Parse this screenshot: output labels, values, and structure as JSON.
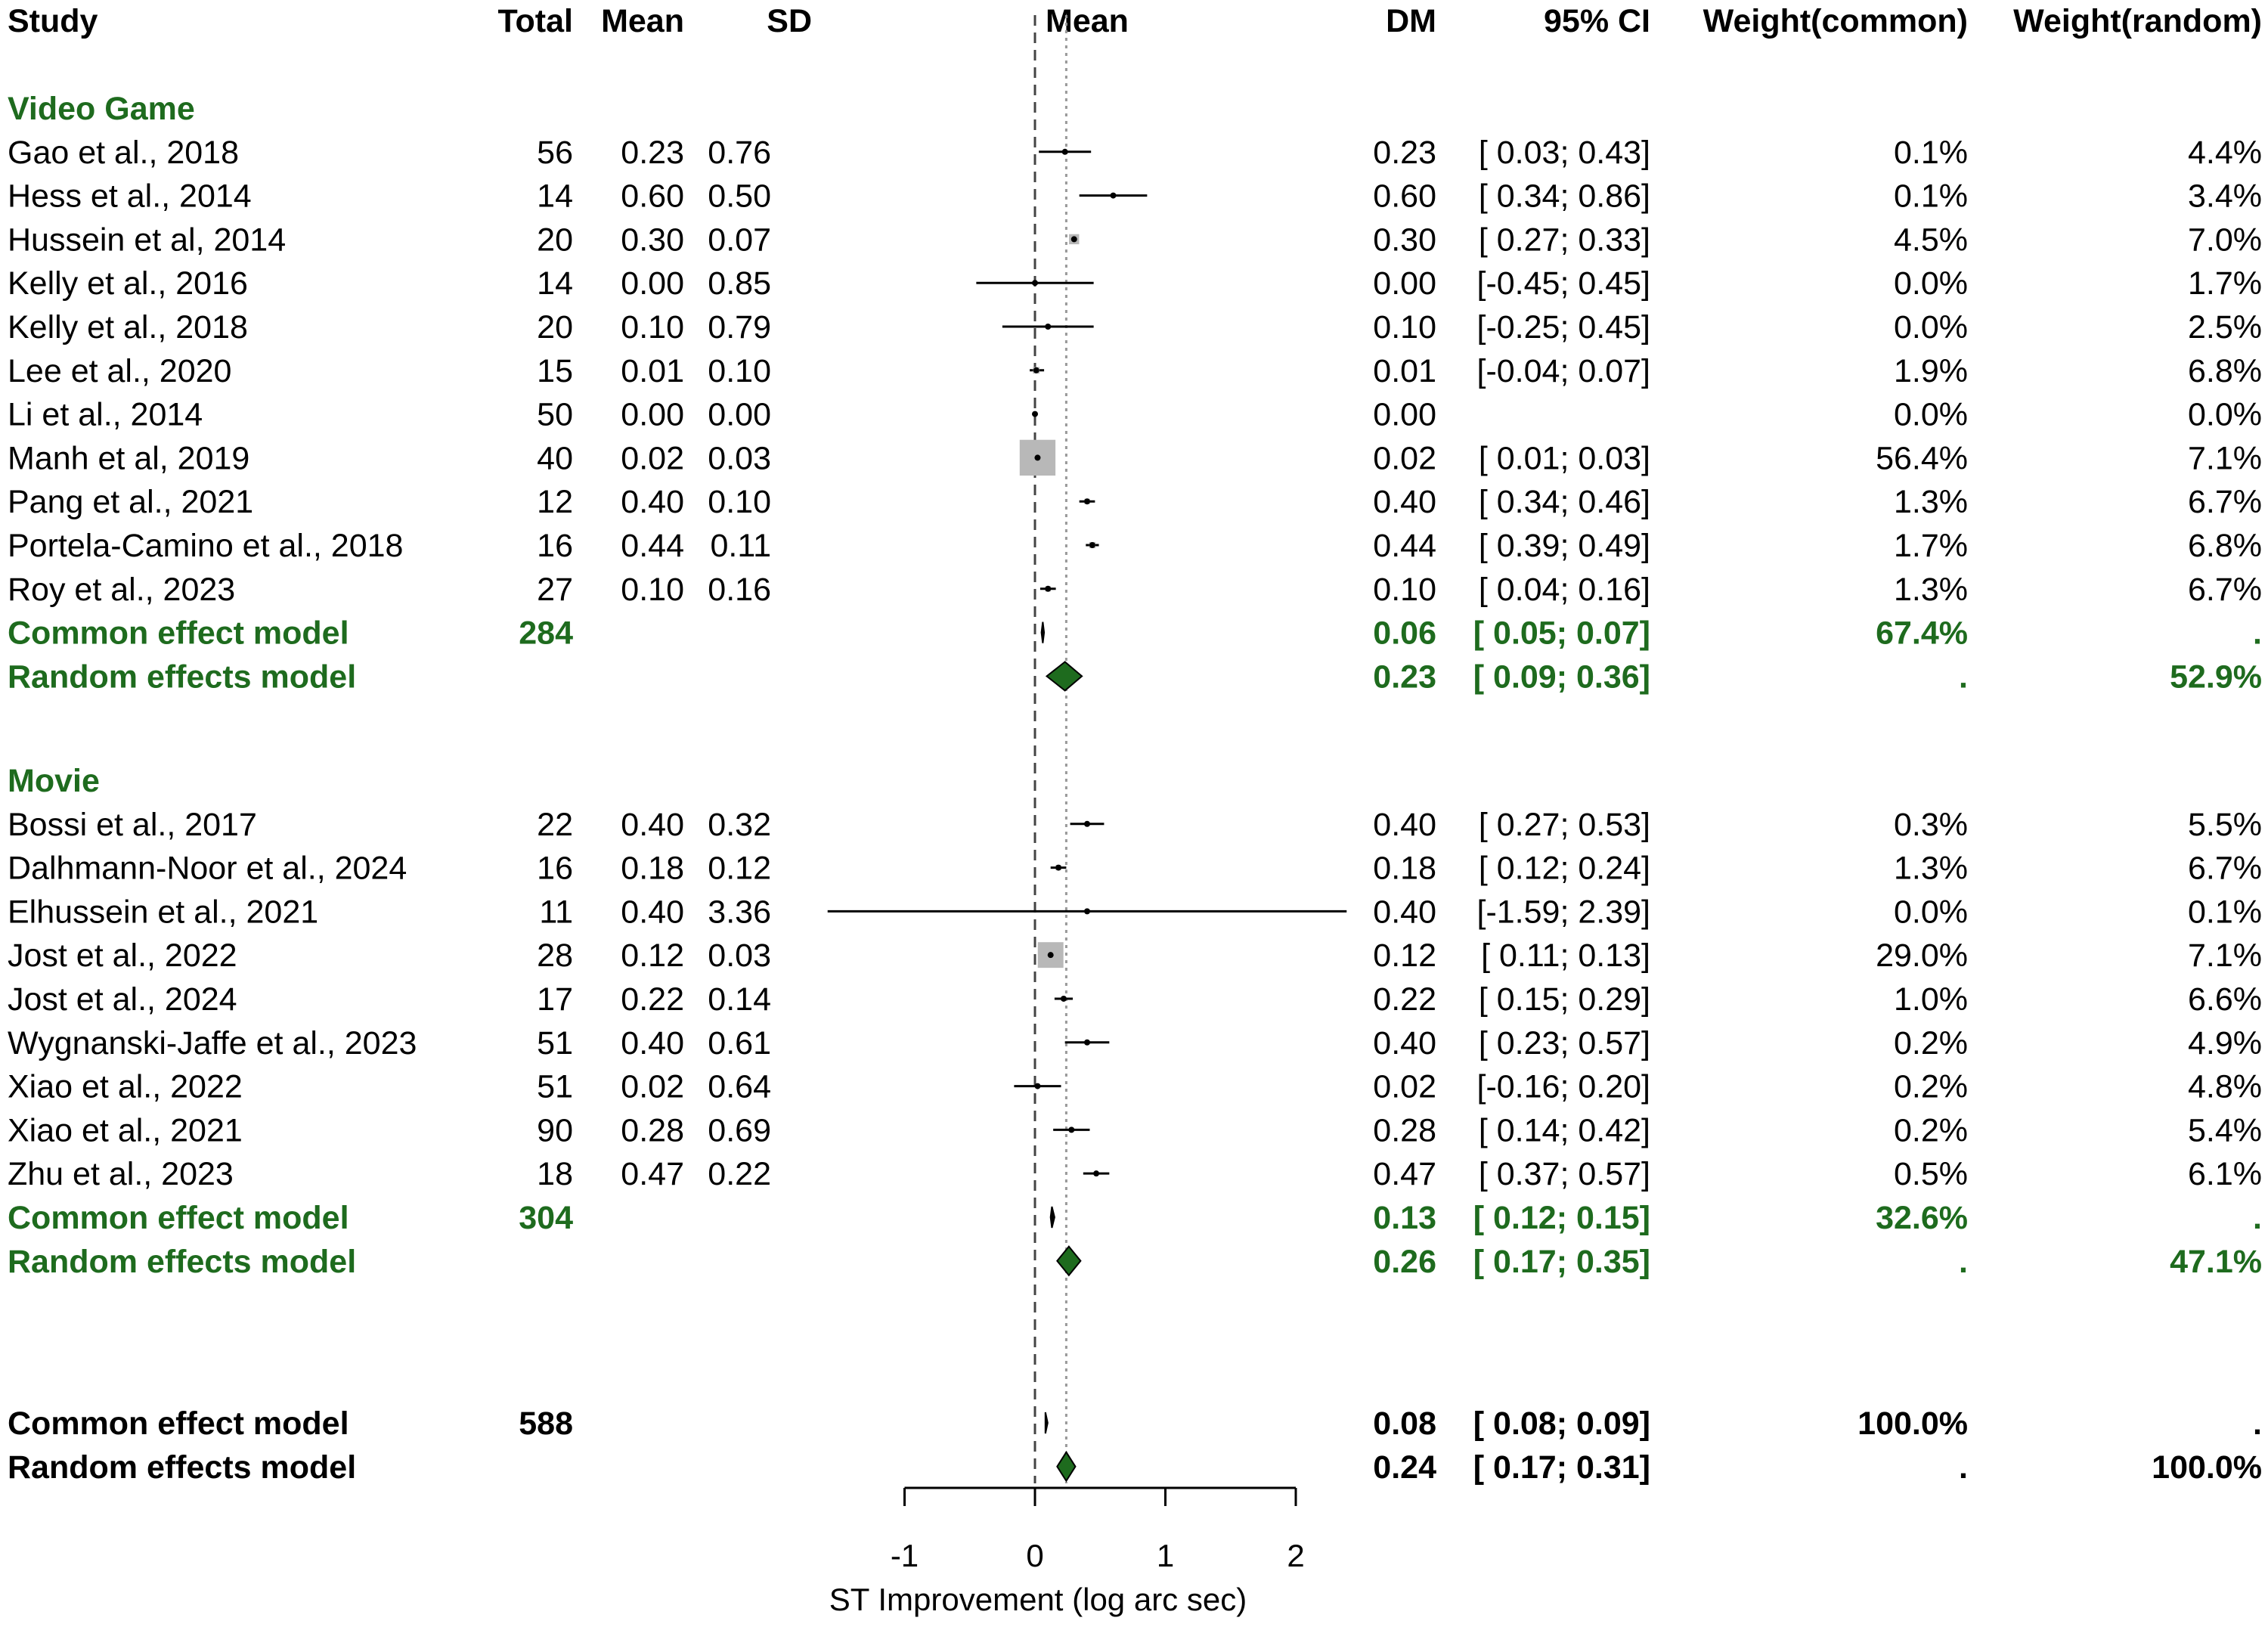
{
  "headers": {
    "study": "Study",
    "total": "Total",
    "mean": "Mean",
    "sd": "SD",
    "plot": "Mean",
    "dm": "DM",
    "ci": "95% CI",
    "weight_common": "Weight(common)",
    "weight_random": "Weight(random)"
  },
  "colors": {
    "group": "#1e6b1e",
    "diamond": "#1e6b1e",
    "square": "#b8b8b8",
    "text": "#000000"
  },
  "chart_data": {
    "type": "forest",
    "xlabel": "ST Improvement (log arc sec)",
    "xlim": [
      -1,
      2
    ],
    "ticks": [
      -1,
      0,
      1,
      2
    ],
    "tick_labels": [
      "-1",
      "0",
      "1",
      "2"
    ],
    "reference_lines": {
      "null": 0,
      "random_overall": 0.24
    },
    "groups": [
      {
        "name": "Video Game",
        "studies": [
          {
            "study": "Gao et al., 2018",
            "total": "56",
            "mean": "0.23",
            "sd": "0.76",
            "dm": "0.23",
            "ci": "[ 0.03; 0.43]",
            "wc": "0.1%",
            "wr": "4.4%",
            "est": 0.23,
            "lo": 0.03,
            "hi": 0.43,
            "w": 0.1
          },
          {
            "study": "Hess et al., 2014",
            "total": "14",
            "mean": "0.60",
            "sd": "0.50",
            "dm": "0.60",
            "ci": "[ 0.34; 0.86]",
            "wc": "0.1%",
            "wr": "3.4%",
            "est": 0.6,
            "lo": 0.34,
            "hi": 0.86,
            "w": 0.1
          },
          {
            "study": "Hussein et al, 2014",
            "total": "20",
            "mean": "0.30",
            "sd": "0.07",
            "dm": "0.30",
            "ci": "[ 0.27; 0.33]",
            "wc": "4.5%",
            "wr": "7.0%",
            "est": 0.3,
            "lo": 0.27,
            "hi": 0.33,
            "w": 4.5
          },
          {
            "study": "Kelly et al., 2016",
            "total": "14",
            "mean": "0.00",
            "sd": "0.85",
            "dm": "0.00",
            "ci": "[-0.45; 0.45]",
            "wc": "0.0%",
            "wr": "1.7%",
            "est": 0.0,
            "lo": -0.45,
            "hi": 0.45,
            "w": 0.0
          },
          {
            "study": "Kelly et al., 2018",
            "total": "20",
            "mean": "0.10",
            "sd": "0.79",
            "dm": "0.10",
            "ci": "[-0.25; 0.45]",
            "wc": "0.0%",
            "wr": "2.5%",
            "est": 0.1,
            "lo": -0.25,
            "hi": 0.45,
            "w": 0.0
          },
          {
            "study": "Lee et al., 2020",
            "total": "15",
            "mean": "0.01",
            "sd": "0.10",
            "dm": "0.01",
            "ci": "[-0.04; 0.07]",
            "wc": "1.9%",
            "wr": "6.8%",
            "est": 0.01,
            "lo": -0.04,
            "hi": 0.07,
            "w": 1.9
          },
          {
            "study": "Li et al., 2014",
            "total": "50",
            "mean": "0.00",
            "sd": "0.00",
            "dm": "0.00",
            "ci": "",
            "wc": "0.0%",
            "wr": "0.0%",
            "est": 0.0,
            "lo": 0.0,
            "hi": 0.0,
            "w": 0.0
          },
          {
            "study": "Manh et al, 2019",
            "total": "40",
            "mean": "0.02",
            "sd": "0.03",
            "dm": "0.02",
            "ci": "[ 0.01; 0.03]",
            "wc": "56.4%",
            "wr": "7.1%",
            "est": 0.02,
            "lo": 0.01,
            "hi": 0.03,
            "w": 56.4
          },
          {
            "study": "Pang et al., 2021",
            "total": "12",
            "mean": "0.40",
            "sd": "0.10",
            "dm": "0.40",
            "ci": "[ 0.34; 0.46]",
            "wc": "1.3%",
            "wr": "6.7%",
            "est": 0.4,
            "lo": 0.34,
            "hi": 0.46,
            "w": 1.3
          },
          {
            "study": "Portela-Camino et al., 2018",
            "total": "16",
            "mean": "0.44",
            "sd": "0.11",
            "dm": "0.44",
            "ci": "[ 0.39; 0.49]",
            "wc": "1.7%",
            "wr": "6.8%",
            "est": 0.44,
            "lo": 0.39,
            "hi": 0.49,
            "w": 1.7
          },
          {
            "study": "Roy et al., 2023",
            "total": "27",
            "mean": "0.10",
            "sd": "0.16",
            "dm": "0.10",
            "ci": "[ 0.04; 0.16]",
            "wc": "1.3%",
            "wr": "6.7%",
            "est": 0.1,
            "lo": 0.04,
            "hi": 0.16,
            "w": 1.3
          }
        ],
        "common": {
          "label": "Common effect model",
          "total": "284",
          "dm": "0.06",
          "ci": "[ 0.05; 0.07]",
          "wc": "67.4%",
          "wr": ".",
          "est": 0.06,
          "lo": 0.05,
          "hi": 0.07
        },
        "random": {
          "label": "Random effects model",
          "total": "",
          "dm": "0.23",
          "ci": "[ 0.09; 0.36]",
          "wc": ".",
          "wr": "52.9%",
          "est": 0.23,
          "lo": 0.09,
          "hi": 0.36
        }
      },
      {
        "name": "Movie",
        "studies": [
          {
            "study": "Bossi et al., 2017",
            "total": "22",
            "mean": "0.40",
            "sd": "0.32",
            "dm": "0.40",
            "ci": "[ 0.27; 0.53]",
            "wc": "0.3%",
            "wr": "5.5%",
            "est": 0.4,
            "lo": 0.27,
            "hi": 0.53,
            "w": 0.3
          },
          {
            "study": "Dalhmann-Noor et al., 2024",
            "total": "16",
            "mean": "0.18",
            "sd": "0.12",
            "dm": "0.18",
            "ci": "[ 0.12; 0.24]",
            "wc": "1.3%",
            "wr": "6.7%",
            "est": 0.18,
            "lo": 0.12,
            "hi": 0.24,
            "w": 1.3
          },
          {
            "study": "Elhussein et al., 2021",
            "total": "11",
            "mean": "0.40",
            "sd": "3.36",
            "dm": "0.40",
            "ci": "[-1.59; 2.39]",
            "wc": "0.0%",
            "wr": "0.1%",
            "est": 0.4,
            "lo": -1.59,
            "hi": 2.39,
            "w": 0.0
          },
          {
            "study": "Jost et al., 2022",
            "total": "28",
            "mean": "0.12",
            "sd": "0.03",
            "dm": "0.12",
            "ci": "[ 0.11; 0.13]",
            "wc": "29.0%",
            "wr": "7.1%",
            "est": 0.12,
            "lo": 0.11,
            "hi": 0.13,
            "w": 29.0
          },
          {
            "study": "Jost et al., 2024",
            "total": "17",
            "mean": "0.22",
            "sd": "0.14",
            "dm": "0.22",
            "ci": "[ 0.15; 0.29]",
            "wc": "1.0%",
            "wr": "6.6%",
            "est": 0.22,
            "lo": 0.15,
            "hi": 0.29,
            "w": 1.0
          },
          {
            "study": "Wygnanski-Jaffe et al., 2023",
            "total": "51",
            "mean": "0.40",
            "sd": "0.61",
            "dm": "0.40",
            "ci": "[ 0.23; 0.57]",
            "wc": "0.2%",
            "wr": "4.9%",
            "est": 0.4,
            "lo": 0.23,
            "hi": 0.57,
            "w": 0.2
          },
          {
            "study": "Xiao et al., 2022",
            "total": "51",
            "mean": "0.02",
            "sd": "0.64",
            "dm": "0.02",
            "ci": "[-0.16; 0.20]",
            "wc": "0.2%",
            "wr": "4.8%",
            "est": 0.02,
            "lo": -0.16,
            "hi": 0.2,
            "w": 0.2
          },
          {
            "study": "Xiao et al., 2021",
            "total": "90",
            "mean": "0.28",
            "sd": "0.69",
            "dm": "0.28",
            "ci": "[ 0.14; 0.42]",
            "wc": "0.2%",
            "wr": "5.4%",
            "est": 0.28,
            "lo": 0.14,
            "hi": 0.42,
            "w": 0.2
          },
          {
            "study": "Zhu et al., 2023",
            "total": "18",
            "mean": "0.47",
            "sd": "0.22",
            "dm": "0.47",
            "ci": "[ 0.37; 0.57]",
            "wc": "0.5%",
            "wr": "6.1%",
            "est": 0.47,
            "lo": 0.37,
            "hi": 0.57,
            "w": 0.5
          }
        ],
        "common": {
          "label": "Common effect model",
          "total": "304",
          "dm": "0.13",
          "ci": "[ 0.12; 0.15]",
          "wc": "32.6%",
          "wr": ".",
          "est": 0.13,
          "lo": 0.12,
          "hi": 0.15
        },
        "random": {
          "label": "Random effects model",
          "total": "",
          "dm": "0.26",
          "ci": "[ 0.17; 0.35]",
          "wc": ".",
          "wr": "47.1%",
          "est": 0.26,
          "lo": 0.17,
          "hi": 0.35
        }
      }
    ],
    "overall": {
      "common": {
        "label": "Common effect model",
        "total": "588",
        "dm": "0.08",
        "ci": "[ 0.08; 0.09]",
        "wc": "100.0%",
        "wr": ".",
        "est": 0.08,
        "lo": 0.08,
        "hi": 0.09
      },
      "random": {
        "label": "Random effects model",
        "total": "",
        "dm": "0.24",
        "ci": "[ 0.17; 0.31]",
        "wc": ".",
        "wr": "100.0%",
        "est": 0.24,
        "lo": 0.17,
        "hi": 0.31
      }
    }
  }
}
